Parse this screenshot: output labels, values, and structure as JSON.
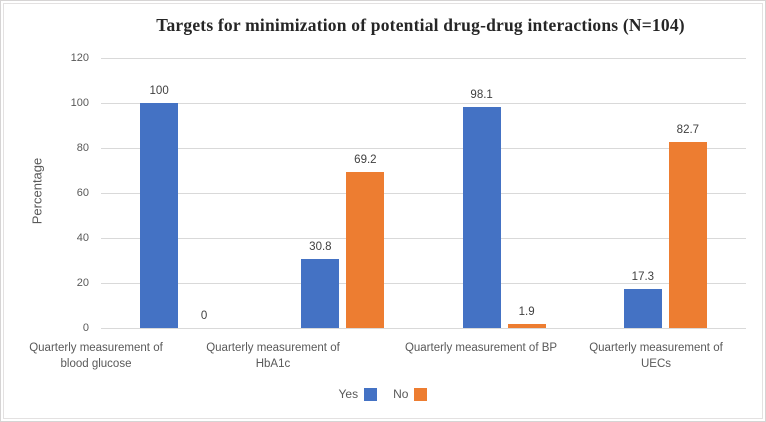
{
  "chart_data": {
    "type": "bar",
    "title": "Targets for minimization of potential drug-drug interactions (N=104)",
    "ylabel": "Percentage",
    "xlabel": "",
    "ylim": [
      0,
      120
    ],
    "yticks": [
      0,
      20,
      40,
      60,
      80,
      100,
      120
    ],
    "grid": true,
    "legend_position": "bottom",
    "categories": [
      "Quarterly measurement of blood glucose",
      "Quarterly measurement of HbA1c",
      "Quarterly measurement of BP",
      "Quarterly measurement of UECs"
    ],
    "series": [
      {
        "name": "Yes",
        "color": "#4472C4",
        "values": [
          100,
          30.8,
          98.1,
          17.3
        ],
        "data_labels": [
          "100",
          "30.8",
          "98.1",
          "17.3"
        ]
      },
      {
        "name": "No",
        "color": "#ED7D31",
        "values": [
          0,
          69.2,
          1.9,
          82.7
        ],
        "data_labels": [
          "0",
          "69.2",
          "1.9",
          "82.7"
        ]
      }
    ],
    "colors": {
      "gridline": "#d9d9d9",
      "axis_text": "#595959",
      "data_label_text": "#404040",
      "title_text": "#262626"
    }
  }
}
